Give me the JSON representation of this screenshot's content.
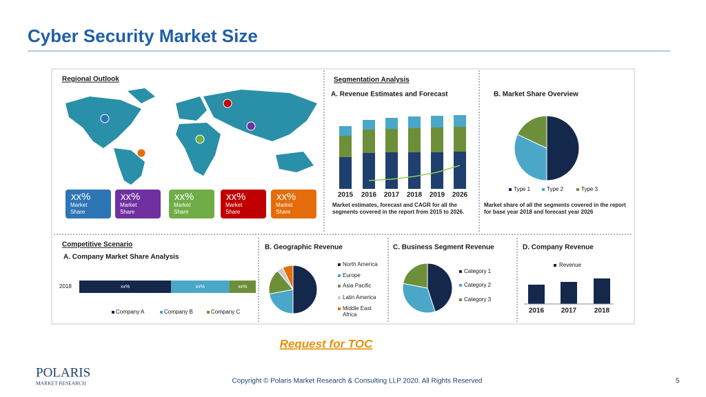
{
  "header": {
    "title": "Cyber Security Market Size"
  },
  "infographic": {
    "regional_outlook": {
      "title": "Regional Outlook",
      "cards": [
        {
          "value": "xx%",
          "label": "Market Share",
          "color": "#2e75b6"
        },
        {
          "value": "xx%",
          "label": "Market Share",
          "color": "#7030a0"
        },
        {
          "value": "xx%",
          "label": "Market Share",
          "color": "#70ad47"
        },
        {
          "value": "xx%",
          "label": "Market Share",
          "color": "#c00000"
        },
        {
          "value": "xx%",
          "label": "Market Share",
          "color": "#e46c0a"
        }
      ]
    },
    "segmentation_analysis": {
      "title": "Segmentation Analysis"
    },
    "revenue_forecast": {
      "type": "bar",
      "stacked": true,
      "title": "A. Revenue Estimates and Forecast",
      "categories": [
        "2015",
        "2016",
        "2017",
        "2018",
        "2019",
        "2026"
      ],
      "series": [
        {
          "color": "#1f3f6e",
          "values": [
            46,
            52,
            53,
            53,
            53,
            54
          ]
        },
        {
          "color": "#6d8f3a",
          "values": [
            31,
            34,
            34,
            35,
            36,
            36
          ]
        },
        {
          "color": "#4aa7c8",
          "values": [
            14,
            14,
            16,
            17,
            17,
            17
          ]
        }
      ],
      "trend": {
        "color": "#8fd14f",
        "values": [
          null,
          12,
          14,
          18,
          24,
          34
        ]
      },
      "caption": "Market estimates, forecast and CAGR for all the segments covered in the report from 2015 to 2026."
    },
    "market_share": {
      "type": "pie",
      "title": "B. Market Share Overview",
      "categories": [
        "Type 1",
        "Type 2",
        "Type 3"
      ],
      "values": [
        50,
        32,
        18
      ],
      "colors": [
        "#14284b",
        "#4aa7c8",
        "#6d8f3a"
      ],
      "caption": "Market share of all the segments covered in the report for base year 2018 and forecast year 2026"
    },
    "competitive": {
      "title": "Competitive Scenario",
      "subtitle": "A. Company Market Share Analysis",
      "category": "2018",
      "series": [
        {
          "name": "Company A",
          "color": "#14284b",
          "value": 52,
          "label": "xx%"
        },
        {
          "name": "Company B",
          "color": "#4aa7c8",
          "value": 33,
          "label": "xx%"
        },
        {
          "name": "Company C",
          "color": "#6d8f3a",
          "value": 15,
          "label": "xx%"
        }
      ]
    },
    "geographic_revenue": {
      "type": "pie",
      "title": "B. Geographic Revenue",
      "categories": [
        "North America",
        "Europe",
        "Asia Pacific",
        "Latin America",
        "Middle East Africa"
      ],
      "values": [
        50,
        22,
        17,
        4,
        7
      ],
      "colors": [
        "#14284b",
        "#4aa7c8",
        "#6d8f3a",
        "#c9c9c9",
        "#e46c0a"
      ]
    },
    "business_segment_revenue": {
      "type": "pie",
      "title": "C. Business Segment Revenue",
      "categories": [
        "Category 1",
        "Category 2",
        "Category 3"
      ],
      "values": [
        45,
        33,
        22
      ],
      "colors": [
        "#14284b",
        "#4aa7c8",
        "#6d8f3a"
      ]
    },
    "company_revenue": {
      "type": "bar",
      "title": "D. Company Revenue",
      "categories": [
        "2016",
        "2017",
        "2018"
      ],
      "values": [
        28,
        32,
        37
      ],
      "color": "#14284b",
      "legend": "Revenue"
    }
  },
  "footer": {
    "toc": "Request for TOC",
    "logo": "POLARIS",
    "logo_sub": "MARKET RESEARCH",
    "copyright": "Copyright © Polaris Market Research & Consulting LLP 2020. All Rights Reserved",
    "page": "5"
  }
}
